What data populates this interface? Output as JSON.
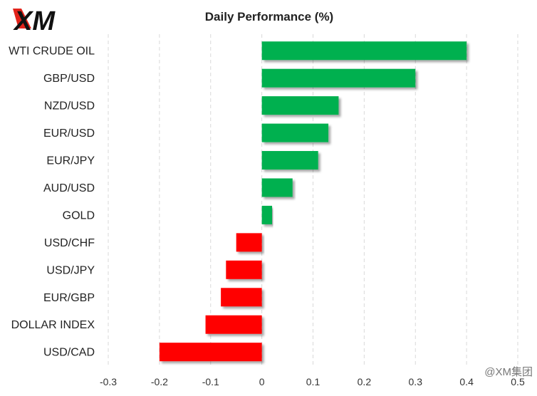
{
  "logo": {
    "text": "XM"
  },
  "watermark": "@XM集团",
  "chart_data": {
    "type": "bar",
    "orientation": "horizontal",
    "title": "Daily Performance  (%)",
    "categories": [
      "WTI CRUDE OIL",
      "GBP/USD",
      "NZD/USD",
      "EUR/USD",
      "EUR/JPY",
      "AUD/USD",
      "GOLD",
      "USD/CHF",
      "USD/JPY",
      "EUR/GBP",
      "DOLLAR INDEX",
      "USD/CAD"
    ],
    "values": [
      0.4,
      0.3,
      0.15,
      0.13,
      0.11,
      0.06,
      0.02,
      -0.05,
      -0.07,
      -0.08,
      -0.11,
      -0.2
    ],
    "xlim": [
      -0.3,
      0.5
    ],
    "xticks": [
      -0.3,
      -0.2,
      -0.1,
      0,
      0.1,
      0.2,
      0.3,
      0.4,
      0.5
    ],
    "xtick_labels": [
      "-0.3",
      "-0.2",
      "-0.1",
      "0",
      "0.1",
      "0.2",
      "0.3",
      "0.4",
      "0.5"
    ],
    "grid": "vertical dashed",
    "colors": {
      "positive": "#00b050",
      "negative": "#ff0000",
      "grid": "#d9d9d9"
    }
  }
}
